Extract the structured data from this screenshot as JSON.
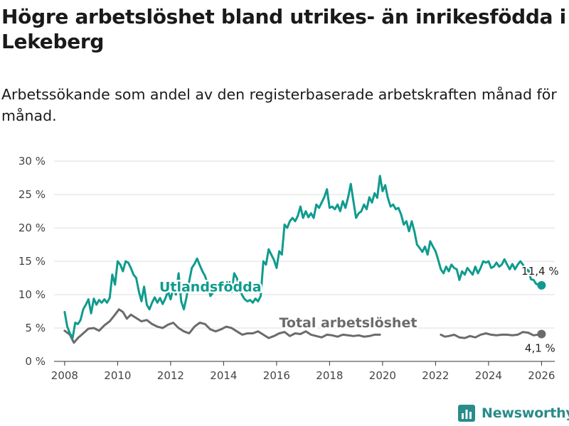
{
  "title": "Högre arbetslöshet bland utrikes- än inrikesfödda i Lekeberg",
  "subtitle": "Arbetssökande som andel av den registerbaserade arbetskraften månad för månad.",
  "brand": "Newsworthy",
  "colors": {
    "foreign": "#0f9b8e",
    "total": "#6b6b6b",
    "grid": "#dddddd",
    "brand": "#2a8b8b"
  },
  "chart_data": {
    "type": "line",
    "title": "Högre arbetslöshet bland utrikes- än inrikesfödda i Lekeberg",
    "xlabel": "",
    "ylabel": "",
    "xlim": [
      2007.6,
      2026.5
    ],
    "ylim": [
      0,
      30
    ],
    "x_ticks": [
      2008,
      2010,
      2012,
      2014,
      2016,
      2018,
      2020,
      2022,
      2024,
      2026
    ],
    "y_ticks": [
      0,
      5,
      10,
      15,
      20,
      25,
      30
    ],
    "y_tick_labels": [
      "0 %",
      "5 %",
      "10 %",
      "15 %",
      "20 %",
      "25 %",
      "30 %"
    ],
    "grid": true,
    "series": [
      {
        "name": "Utlandsfödda",
        "label_x": 2013.5,
        "label_y": 10.5,
        "end_label": "11,4 %",
        "points": [
          [
            2008.0,
            7.4
          ],
          [
            2008.1,
            5.2
          ],
          [
            2008.2,
            4.2
          ],
          [
            2008.3,
            3.5
          ],
          [
            2008.4,
            5.8
          ],
          [
            2008.5,
            5.6
          ],
          [
            2008.6,
            6.2
          ],
          [
            2008.7,
            7.8
          ],
          [
            2008.8,
            8.5
          ],
          [
            2008.9,
            9.3
          ],
          [
            2009.0,
            7.2
          ],
          [
            2009.1,
            9.4
          ],
          [
            2009.2,
            8.5
          ],
          [
            2009.3,
            9.2
          ],
          [
            2009.4,
            8.8
          ],
          [
            2009.5,
            9.3
          ],
          [
            2009.6,
            8.8
          ],
          [
            2009.7,
            9.5
          ],
          [
            2009.8,
            13.0
          ],
          [
            2009.9,
            11.5
          ],
          [
            2010.0,
            15.0
          ],
          [
            2010.1,
            14.5
          ],
          [
            2010.2,
            13.5
          ],
          [
            2010.3,
            15.0
          ],
          [
            2010.4,
            14.8
          ],
          [
            2010.5,
            14.0
          ],
          [
            2010.6,
            13.0
          ],
          [
            2010.7,
            12.5
          ],
          [
            2010.8,
            10.5
          ],
          [
            2010.9,
            9.0
          ],
          [
            2011.0,
            11.2
          ],
          [
            2011.1,
            8.5
          ],
          [
            2011.2,
            7.8
          ],
          [
            2011.3,
            8.8
          ],
          [
            2011.4,
            9.6
          ],
          [
            2011.5,
            8.8
          ],
          [
            2011.6,
            9.5
          ],
          [
            2011.7,
            8.6
          ],
          [
            2011.8,
            9.4
          ],
          [
            2011.9,
            10.5
          ],
          [
            2012.0,
            9.3
          ],
          [
            2012.1,
            11.0
          ],
          [
            2012.2,
            10.0
          ],
          [
            2012.3,
            13.2
          ],
          [
            2012.4,
            9.0
          ],
          [
            2012.5,
            7.8
          ],
          [
            2012.6,
            9.6
          ],
          [
            2012.7,
            12.0
          ],
          [
            2012.8,
            14.0
          ],
          [
            2012.9,
            14.6
          ],
          [
            2013.0,
            15.4
          ],
          [
            2013.1,
            14.4
          ],
          [
            2013.2,
            13.5
          ],
          [
            2013.3,
            12.8
          ],
          [
            2013.4,
            11.6
          ],
          [
            2013.5,
            9.8
          ],
          [
            2013.6,
            10.3
          ],
          [
            2013.7,
            11.5
          ],
          [
            2013.8,
            11.2
          ],
          [
            2013.9,
            12.0
          ],
          [
            2014.0,
            10.8
          ],
          [
            2014.1,
            10.5
          ],
          [
            2014.2,
            11.3
          ],
          [
            2014.3,
            10.4
          ],
          [
            2014.4,
            13.2
          ],
          [
            2014.5,
            12.5
          ],
          [
            2014.6,
            11.0
          ],
          [
            2014.7,
            9.9
          ],
          [
            2014.8,
            9.3
          ],
          [
            2014.9,
            9.0
          ],
          [
            2015.0,
            9.2
          ],
          [
            2015.1,
            8.8
          ],
          [
            2015.2,
            9.4
          ],
          [
            2015.3,
            9.0
          ],
          [
            2015.4,
            9.8
          ],
          [
            2015.5,
            15.0
          ],
          [
            2015.6,
            14.5
          ],
          [
            2015.7,
            16.8
          ],
          [
            2015.8,
            16.0
          ],
          [
            2015.9,
            15.2
          ],
          [
            2016.0,
            14.0
          ],
          [
            2016.1,
            16.5
          ],
          [
            2016.2,
            16.0
          ],
          [
            2016.3,
            20.5
          ],
          [
            2016.4,
            20.0
          ],
          [
            2016.5,
            21.0
          ],
          [
            2016.6,
            21.5
          ],
          [
            2016.7,
            21.0
          ],
          [
            2016.8,
            21.8
          ],
          [
            2016.9,
            23.2
          ],
          [
            2017.0,
            21.5
          ],
          [
            2017.1,
            22.5
          ],
          [
            2017.2,
            21.6
          ],
          [
            2017.3,
            22.2
          ],
          [
            2017.4,
            21.5
          ],
          [
            2017.5,
            23.5
          ],
          [
            2017.6,
            23.0
          ],
          [
            2017.7,
            23.8
          ],
          [
            2017.8,
            24.6
          ],
          [
            2017.9,
            25.8
          ],
          [
            2018.0,
            23.0
          ],
          [
            2018.1,
            23.2
          ],
          [
            2018.2,
            22.8
          ],
          [
            2018.3,
            23.5
          ],
          [
            2018.4,
            22.5
          ],
          [
            2018.5,
            24.0
          ],
          [
            2018.6,
            23.0
          ],
          [
            2018.7,
            24.6
          ],
          [
            2018.8,
            26.6
          ],
          [
            2018.9,
            24.0
          ],
          [
            2019.0,
            21.5
          ],
          [
            2019.1,
            22.2
          ],
          [
            2019.2,
            22.5
          ],
          [
            2019.3,
            23.5
          ],
          [
            2019.4,
            22.8
          ],
          [
            2019.5,
            24.6
          ],
          [
            2019.6,
            23.8
          ],
          [
            2019.7,
            25.2
          ],
          [
            2019.8,
            24.5
          ],
          [
            2019.9,
            27.8
          ],
          [
            2020.0,
            25.5
          ],
          [
            2020.1,
            26.4
          ],
          [
            2020.2,
            24.5
          ],
          [
            2020.3,
            23.2
          ],
          [
            2020.4,
            23.5
          ],
          [
            2020.5,
            22.8
          ],
          [
            2020.6,
            23.0
          ],
          [
            2020.7,
            22.0
          ],
          [
            2020.8,
            20.5
          ],
          [
            2020.9,
            21.0
          ],
          [
            2021.0,
            19.5
          ],
          [
            2021.1,
            21.0
          ],
          [
            2021.2,
            19.5
          ],
          [
            2021.3,
            17.5
          ],
          [
            2021.4,
            17.0
          ],
          [
            2021.5,
            16.4
          ],
          [
            2021.6,
            17.2
          ],
          [
            2021.7,
            16.0
          ],
          [
            2021.8,
            18.0
          ],
          [
            2021.9,
            17.2
          ],
          [
            2022.0,
            16.5
          ],
          [
            2022.1,
            15.2
          ],
          [
            2022.2,
            13.8
          ],
          [
            2022.3,
            13.2
          ],
          [
            2022.4,
            14.2
          ],
          [
            2022.5,
            13.5
          ],
          [
            2022.6,
            14.5
          ],
          [
            2022.7,
            14.0
          ],
          [
            2022.8,
            13.8
          ],
          [
            2022.9,
            12.2
          ],
          [
            2023.0,
            13.5
          ],
          [
            2023.1,
            13.0
          ],
          [
            2023.2,
            14.0
          ],
          [
            2023.3,
            13.5
          ],
          [
            2023.4,
            13.0
          ],
          [
            2023.5,
            14.2
          ],
          [
            2023.6,
            13.2
          ],
          [
            2023.7,
            14.0
          ],
          [
            2023.8,
            15.0
          ],
          [
            2023.9,
            14.8
          ],
          [
            2024.0,
            15.0
          ],
          [
            2024.1,
            14.0
          ],
          [
            2024.2,
            14.2
          ],
          [
            2024.3,
            14.8
          ],
          [
            2024.4,
            14.2
          ],
          [
            2024.5,
            14.5
          ],
          [
            2024.6,
            15.3
          ],
          [
            2024.7,
            14.5
          ],
          [
            2024.8,
            13.8
          ],
          [
            2024.9,
            14.6
          ],
          [
            2025.0,
            13.8
          ],
          [
            2025.1,
            14.5
          ],
          [
            2025.2,
            15.0
          ],
          [
            2025.3,
            14.5
          ],
          [
            2025.4,
            13.4
          ],
          [
            2025.5,
            13.8
          ],
          [
            2025.6,
            12.3
          ],
          [
            2025.7,
            12.2
          ],
          [
            2025.8,
            11.6
          ],
          [
            2026.0,
            11.4
          ]
        ]
      },
      {
        "name": "Total arbetslöshet",
        "label_x": 2018.7,
        "label_y": 5.1,
        "end_label": "4,1 %",
        "points": [
          [
            2008.0,
            4.6
          ],
          [
            2008.2,
            4.0
          ],
          [
            2008.35,
            2.8
          ],
          [
            2008.5,
            3.5
          ],
          [
            2008.7,
            4.2
          ],
          [
            2008.9,
            4.9
          ],
          [
            2009.1,
            5.0
          ],
          [
            2009.3,
            4.6
          ],
          [
            2009.5,
            5.4
          ],
          [
            2009.7,
            6.0
          ],
          [
            2009.9,
            7.0
          ],
          [
            2010.05,
            7.8
          ],
          [
            2010.2,
            7.4
          ],
          [
            2010.35,
            6.4
          ],
          [
            2010.5,
            7.0
          ],
          [
            2010.7,
            6.5
          ],
          [
            2010.9,
            6.0
          ],
          [
            2011.1,
            6.2
          ],
          [
            2011.3,
            5.6
          ],
          [
            2011.5,
            5.2
          ],
          [
            2011.7,
            5.0
          ],
          [
            2011.9,
            5.5
          ],
          [
            2012.1,
            5.8
          ],
          [
            2012.3,
            5.0
          ],
          [
            2012.5,
            4.5
          ],
          [
            2012.7,
            4.2
          ],
          [
            2012.9,
            5.2
          ],
          [
            2013.1,
            5.8
          ],
          [
            2013.3,
            5.6
          ],
          [
            2013.5,
            4.8
          ],
          [
            2013.7,
            4.5
          ],
          [
            2013.9,
            4.8
          ],
          [
            2014.1,
            5.2
          ],
          [
            2014.3,
            5.0
          ],
          [
            2014.5,
            4.5
          ],
          [
            2014.7,
            4.0
          ],
          [
            2014.9,
            4.2
          ],
          [
            2015.1,
            4.2
          ],
          [
            2015.3,
            4.5
          ],
          [
            2015.5,
            4.0
          ],
          [
            2015.7,
            3.5
          ],
          [
            2015.9,
            3.8
          ],
          [
            2016.1,
            4.2
          ],
          [
            2016.3,
            4.4
          ],
          [
            2016.5,
            3.8
          ],
          [
            2016.7,
            4.2
          ],
          [
            2016.9,
            4.1
          ],
          [
            2017.1,
            4.5
          ],
          [
            2017.3,
            4.0
          ],
          [
            2017.5,
            3.8
          ],
          [
            2017.7,
            3.6
          ],
          [
            2017.9,
            4.0
          ],
          [
            2018.1,
            3.9
          ],
          [
            2018.3,
            3.7
          ],
          [
            2018.5,
            4.0
          ],
          [
            2018.7,
            3.9
          ],
          [
            2018.9,
            3.8
          ],
          [
            2019.1,
            3.9
          ],
          [
            2019.3,
            3.7
          ],
          [
            2019.5,
            3.8
          ],
          [
            2019.7,
            4.0
          ],
          [
            2019.9,
            4.0
          ]
        ],
        "points_b": [
          [
            2022.2,
            4.0
          ],
          [
            2022.35,
            3.7
          ],
          [
            2022.5,
            3.8
          ],
          [
            2022.7,
            4.0
          ],
          [
            2022.9,
            3.6
          ],
          [
            2023.1,
            3.5
          ],
          [
            2023.3,
            3.8
          ],
          [
            2023.5,
            3.6
          ],
          [
            2023.7,
            4.0
          ],
          [
            2023.9,
            4.2
          ],
          [
            2024.1,
            4.0
          ],
          [
            2024.3,
            3.9
          ],
          [
            2024.5,
            4.0
          ],
          [
            2024.7,
            4.0
          ],
          [
            2024.9,
            3.9
          ],
          [
            2025.1,
            4.0
          ],
          [
            2025.3,
            4.4
          ],
          [
            2025.5,
            4.3
          ],
          [
            2025.7,
            3.9
          ],
          [
            2026.0,
            4.1
          ]
        ]
      }
    ]
  }
}
